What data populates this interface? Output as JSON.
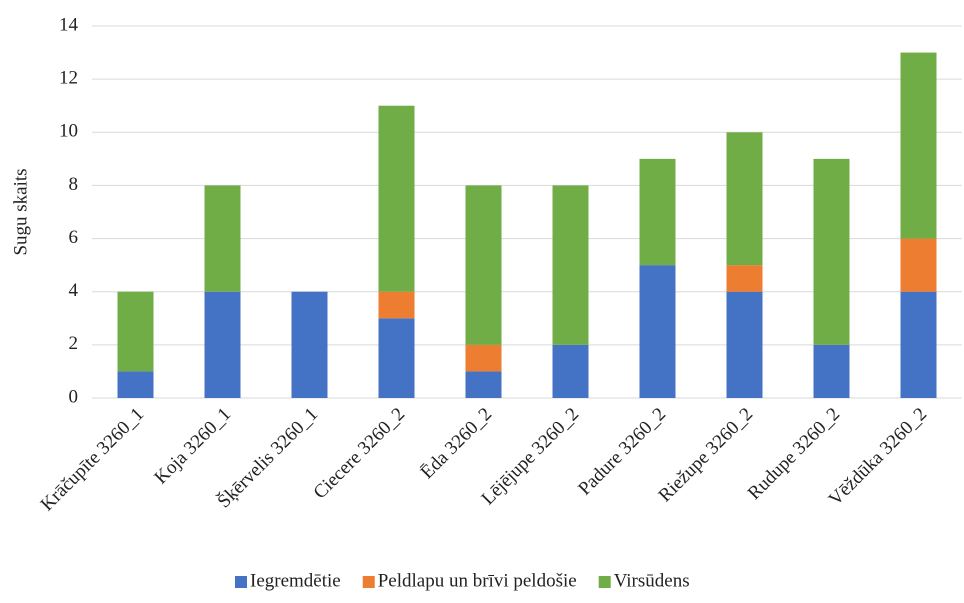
{
  "chart_data": {
    "type": "stacked_bar",
    "ylabel": "Sugu skaits",
    "categories": [
      "Krāčupīte 3260_1",
      "Koja 3260_1",
      "Šķērvelis 3260_1",
      "Ciecere 3260_2",
      "Ēda 3260_2",
      "Lējējupe 3260_2",
      "Padure 3260_2",
      "Riežupe 3260_2",
      "Rudupe 3260_2",
      "Vēždūka 3260_2"
    ],
    "series": [
      {
        "name": "Iegremdētie",
        "color": "#4472c4",
        "values": [
          1,
          4,
          4,
          3,
          1,
          2,
          5,
          4,
          2,
          4
        ]
      },
      {
        "name": "Peldlapu un brīvi peldošie",
        "color": "#ed7d31",
        "values": [
          0,
          0,
          0,
          1,
          1,
          0,
          0,
          1,
          0,
          2
        ]
      },
      {
        "name": "Virsūdens",
        "color": "#70ad47",
        "values": [
          3,
          4,
          0,
          7,
          6,
          6,
          4,
          5,
          7,
          7
        ]
      }
    ],
    "ylim": [
      0,
      14
    ],
    "yticks": [
      0,
      2,
      4,
      6,
      8,
      10,
      12,
      14
    ],
    "grid": true,
    "legend": "bottom"
  }
}
